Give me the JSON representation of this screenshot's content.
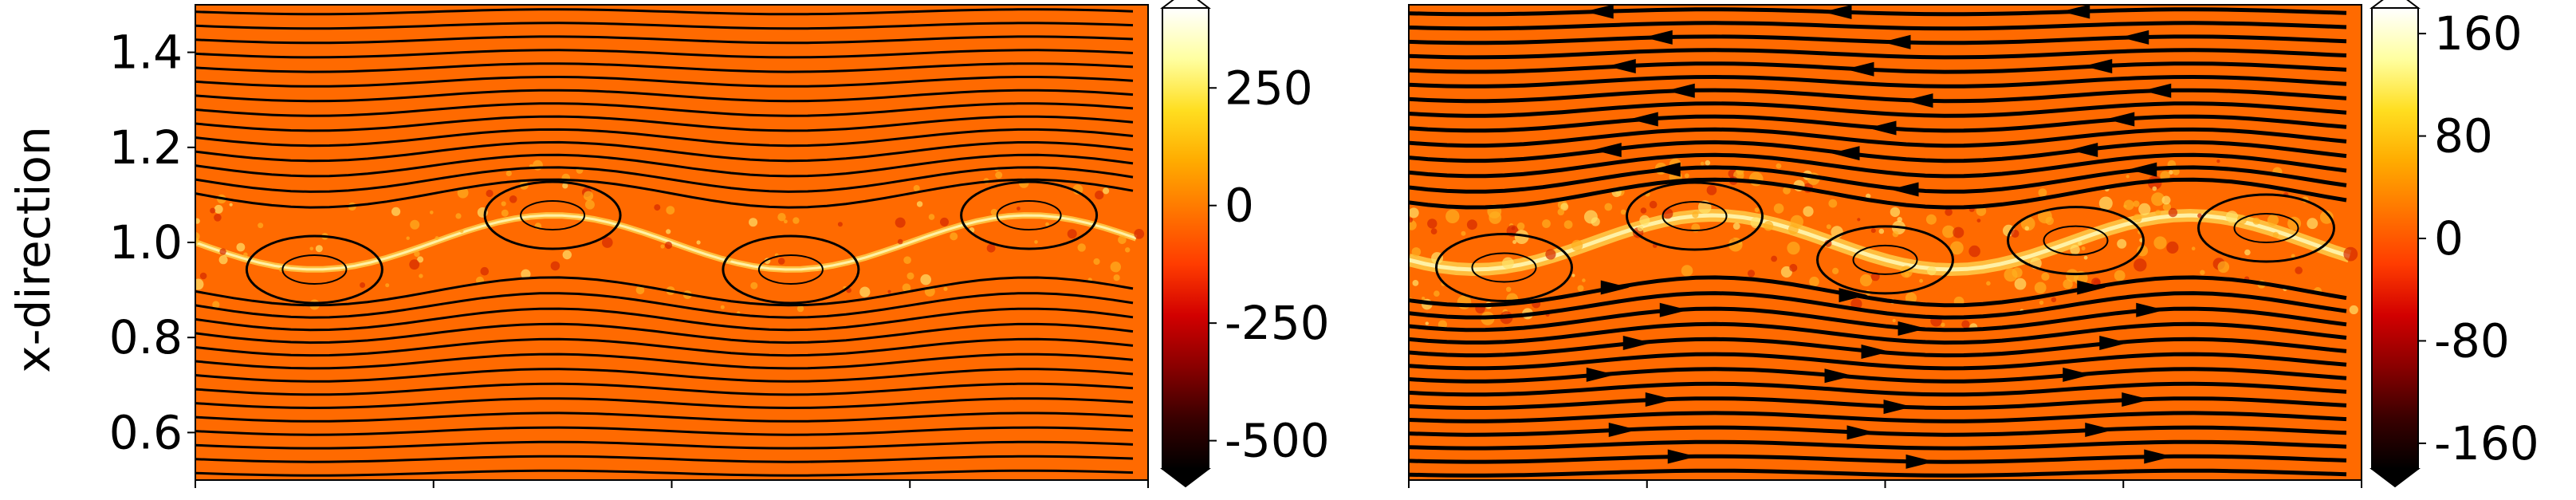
{
  "figure": {
    "ylabel": "x-direction"
  },
  "colors": {
    "background": "#ff6a00",
    "streamline": "#000000",
    "colormap": [
      "#000000",
      "#3a0000",
      "#8a0000",
      "#d20000",
      "#ff3c00",
      "#ff7400",
      "#ffab00",
      "#ffde20",
      "#ffffa0",
      "#ffffff"
    ]
  },
  "chart_data": [
    {
      "type": "heatmap",
      "overlay": "streamlines",
      "panel": "left",
      "title": "",
      "xlabel": "",
      "ylabel": "x-direction",
      "ylim": [
        0.5,
        1.5
      ],
      "yticks": [
        "1.4",
        "1.2",
        "1.0",
        "0.8",
        "0.6"
      ],
      "ytick_values": [
        1.4,
        1.2,
        1.0,
        0.8,
        0.6
      ],
      "xtick_count": 5,
      "xtick_labels_visible": false,
      "streamline_arrows": false,
      "colorbar": {
        "range": [
          -560,
          420
        ],
        "ticks": [
          "250",
          "0",
          "-250",
          "-500"
        ],
        "tick_values": [
          250,
          0,
          -250,
          -500
        ],
        "extend": "both"
      },
      "features": {
        "shear_layer_center": 1.0,
        "eddies": 4,
        "dominant_value": 0
      }
    },
    {
      "type": "heatmap",
      "overlay": "streamlines",
      "panel": "right",
      "title": "",
      "xlabel": "",
      "ylabel": "",
      "ylim": [
        0.5,
        1.5
      ],
      "yticks": [],
      "xtick_count": 5,
      "xtick_labels_visible": false,
      "streamline_arrows": true,
      "flow_direction": {
        "upper": "left",
        "lower": "right"
      },
      "colorbar": {
        "range": [
          -180,
          180
        ],
        "ticks": [
          "160",
          "80",
          "0",
          "-80",
          "-160"
        ],
        "tick_values": [
          160,
          80,
          0,
          -80,
          -160
        ],
        "extend": "both"
      },
      "features": {
        "shear_layer_center": 1.0,
        "eddies": 5,
        "dominant_value": 0
      }
    }
  ]
}
